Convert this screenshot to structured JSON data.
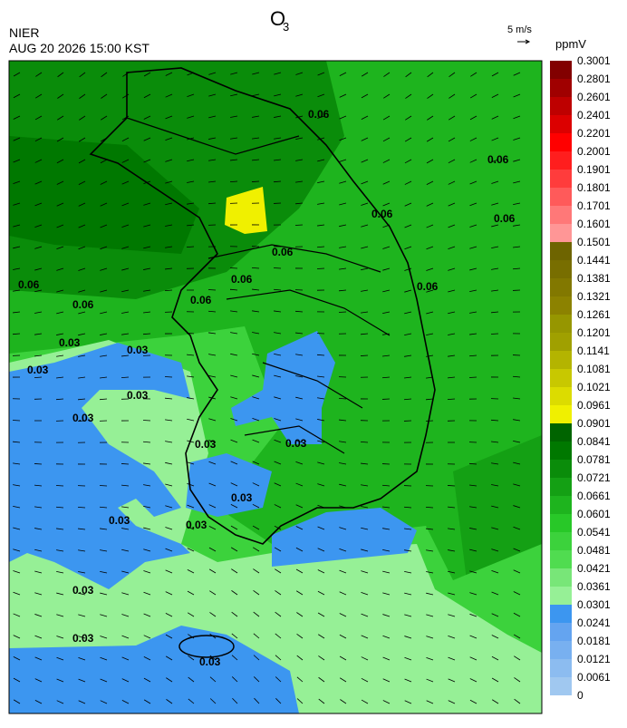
{
  "header": {
    "title": "O",
    "title_sub": "3",
    "agency": "NIER",
    "datetime": "AUG 20 2026 15:00 KST",
    "wind_scale": "5 m/s"
  },
  "colorbar": {
    "unit": "ppmV",
    "labels": [
      "0",
      "0.0061",
      "0.0121",
      "0.0181",
      "0.0241",
      "0.0301",
      "0.0361",
      "0.0421",
      "0.0481",
      "0.0541",
      "0.0601",
      "0.0661",
      "0.0721",
      "0.0781",
      "0.0841",
      "0.0901",
      "0.0961",
      "0.1021",
      "0.1081",
      "0.1141",
      "0.1201",
      "0.1261",
      "0.1321",
      "0.1381",
      "0.1441",
      "0.1501",
      "0.1601",
      "0.1701",
      "0.1801",
      "0.1901",
      "0.2001",
      "0.2201",
      "0.2401",
      "0.2601",
      "0.2801",
      "0.3001"
    ],
    "colors": [
      "#a0c8f0",
      "#8cbcf0",
      "#78b0f0",
      "#64a4f0",
      "#3c96f0",
      "#96f096",
      "#78e678",
      "#50dc50",
      "#3cd23c",
      "#28c828",
      "#1eb41e",
      "#14a014",
      "#0a8c0a",
      "#007800",
      "#006400",
      "#f0f000",
      "#dcdc00",
      "#c8c800",
      "#b4b400",
      "#a0a000",
      "#969600",
      "#8c8200",
      "#827800",
      "#786e00",
      "#6e6400",
      "#ff9696",
      "#ff7878",
      "#ff5a5a",
      "#ff3c3c",
      "#ff1e1e",
      "#ff0000",
      "#dc0000",
      "#be0000",
      "#a00000",
      "#820000"
    ]
  },
  "contour_labels": [
    "0.06",
    "0.06",
    "0.06",
    "0.06",
    "0.06",
    "0.06",
    "0.06",
    "0.06",
    "0.06",
    "0.06",
    "0.03",
    "0.03",
    "0.03",
    "0.03",
    "0.03",
    "0.03",
    "0.03",
    "0.03",
    "0.03",
    "0.03",
    "0.03",
    "0.03",
    "0.03"
  ]
}
